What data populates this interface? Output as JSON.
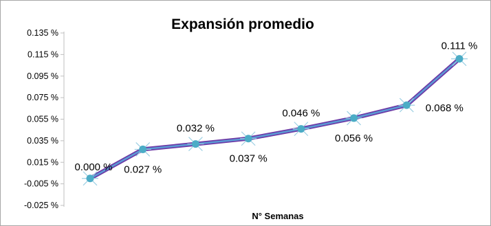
{
  "chart_data": {
    "type": "line",
    "title": "Expansión promedio",
    "xlabel": "N° Semanas",
    "ylabel": "",
    "ylim": [
      -0.025,
      0.135
    ],
    "yticks": [
      0.135,
      0.115,
      0.095,
      0.075,
      0.055,
      0.035,
      0.015,
      -0.005,
      -0.025
    ],
    "ytick_labels": [
      "0.135 %",
      "0.115 %",
      "0.095 %",
      "0.075 %",
      "0.055 %",
      "0.035 %",
      "0.015 %",
      "-0.005 %",
      "-0.025 %"
    ],
    "grid": false,
    "series": [
      {
        "values": [
          0.0,
          0.027,
          0.032,
          0.037,
          0.046,
          0.056,
          0.068,
          0.111
        ],
        "data_labels": [
          "0.000 %",
          "0.027 %",
          "0.032 %",
          "0.037 %",
          "0.046 %",
          "0.056 %",
          "0.068 %",
          "0.111 %"
        ],
        "label_positions": [
          "above",
          "below",
          "above",
          "below",
          "above",
          "below",
          "below",
          "above"
        ]
      }
    ],
    "colors": {
      "line_outer": "#6c3aa6",
      "line_inner": "#5b9bd5",
      "marker": "#4bacc6",
      "marker_star": "#9ccfe3",
      "axis": "#bfbfbf",
      "border": "#a6a6a6"
    }
  }
}
